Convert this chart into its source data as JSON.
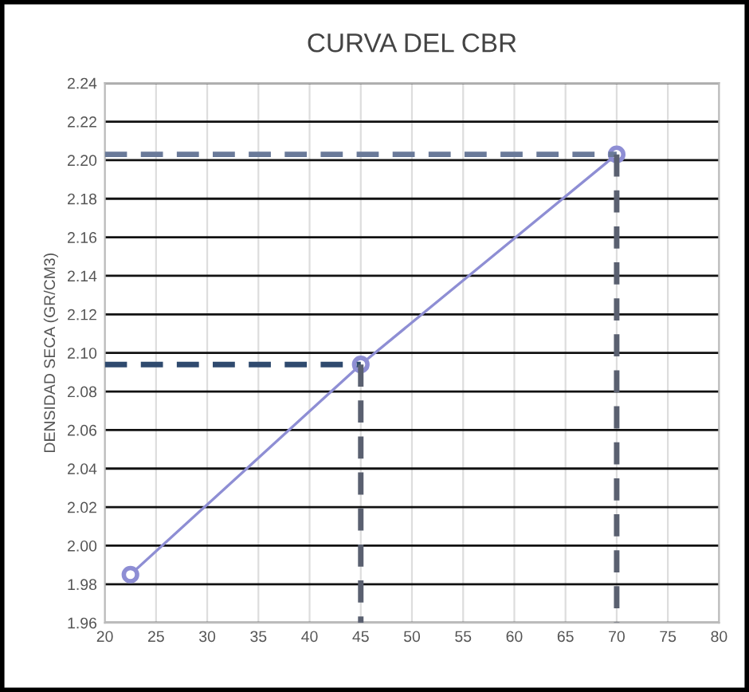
{
  "chart_data": {
    "type": "line",
    "title": "CURVA DEL CBR",
    "ylabel": "DENSIDAD SECA (GR/CM3)",
    "xlim": [
      20,
      80
    ],
    "xticks": [
      20,
      25,
      30,
      35,
      40,
      45,
      50,
      55,
      60,
      65,
      70,
      75,
      80
    ],
    "ylim": [
      1.96,
      2.24
    ],
    "yticks": [
      1.96,
      1.98,
      {
        "value": 2.0,
        "label": "2.00"
      },
      2.02,
      2.04,
      2.06,
      2.08,
      {
        "value": 2.1,
        "label": "2.10"
      },
      2.12,
      2.14,
      2.16,
      2.18,
      {
        "value": 2.2,
        "label": "2.20"
      },
      2.22,
      2.24
    ],
    "grid": true,
    "marker": "circle",
    "line_style": "solid",
    "series": [
      {
        "color": "#8e8ed4",
        "x": [
          22.5,
          45,
          70
        ],
        "values": [
          1.985,
          2.094,
          2.203
        ]
      },
      {
        "color": "#2f4a6e",
        "x": [
          20,
          45
        ],
        "values": [
          2.094,
          2.094
        ],
        "line_style": "dashed",
        "marker": "none"
      },
      {
        "color": "#5a6070",
        "x": [
          45,
          45
        ],
        "values": [
          2.094,
          1.96
        ],
        "line_style": "dashed",
        "marker": "none"
      },
      {
        "color": "#6a7a99",
        "x": [
          20,
          70
        ],
        "values": [
          2.203,
          2.203
        ],
        "line_style": "dashed",
        "marker": "none"
      },
      {
        "color": "#5a6070",
        "x": [
          70,
          70
        ],
        "values": [
          2.203,
          1.96
        ],
        "line_style": "dashed",
        "marker": "none"
      }
    ]
  }
}
